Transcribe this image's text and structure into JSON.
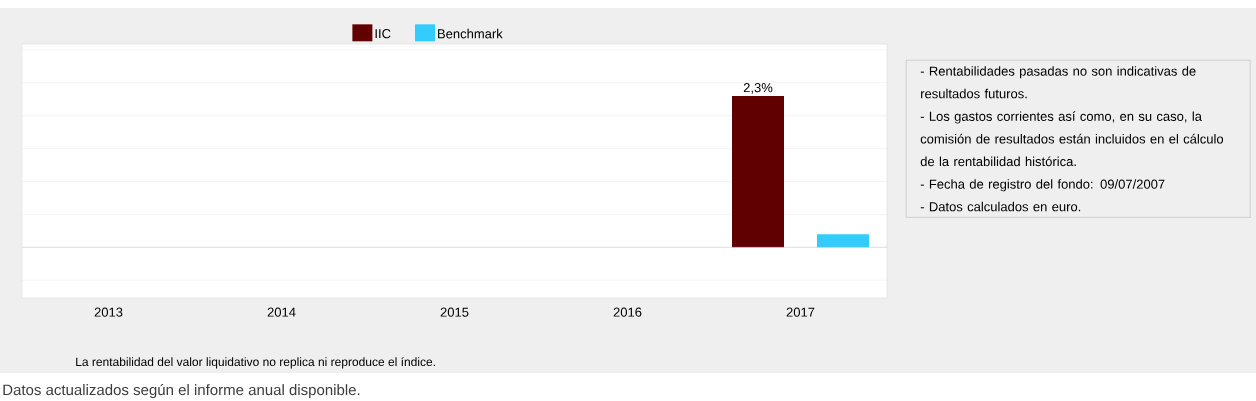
{
  "chart_data": {
    "type": "bar",
    "categories": [
      "2013",
      "2014",
      "2015",
      "2016",
      "2017"
    ],
    "series": [
      {
        "name": "IIC",
        "color": "#600000",
        "values": [
          null,
          null,
          null,
          null,
          2.3
        ],
        "value_labels": [
          null,
          null,
          null,
          null,
          "2,3%"
        ]
      },
      {
        "name": "Benchmark",
        "color": "#33ccff",
        "values": [
          null,
          null,
          null,
          null,
          0.2
        ]
      }
    ],
    "ylim": [
      -0.77,
      3.09
    ],
    "yticks": [
      {
        "value": -0.5,
        "label": null
      },
      {
        "value": 0,
        "label": null
      },
      {
        "value": 0.5,
        "label": null
      },
      {
        "value": 1,
        "label": null
      },
      {
        "value": 1.5,
        "label": null
      },
      {
        "value": 2,
        "label": null
      },
      {
        "value": 2.5,
        "label": null
      },
      {
        "value": 3,
        "label": null
      }
    ],
    "grid": "y",
    "legend": "top",
    "tick_labels": "x",
    "annotations": [
      "- Rentabilidades pasadas no son indicativas de resultados futuros.",
      "- Los gastos corrientes así como, en su caso, la comisión de resultados están incluidos en el cálculo de la rentabilidad histórica.",
      "- Fecha de registro del fondo: 09/07/2007",
      "- Datos calculados en euro.",
      "La rentabilidad del valor liquidativo no replica ni reproduce el índice.",
      "Datos actualizados según el informe anual disponible."
    ]
  }
}
